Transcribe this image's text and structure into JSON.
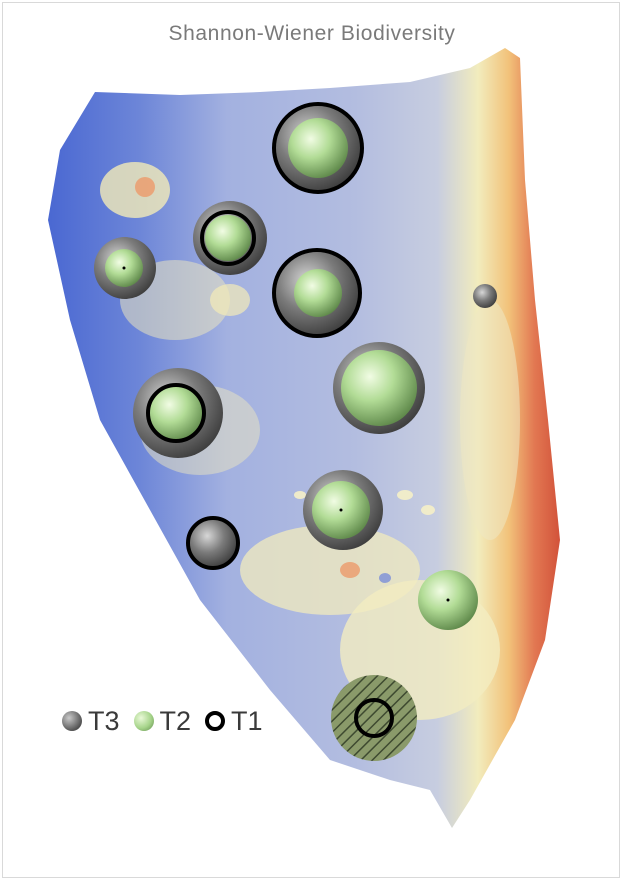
{
  "title": "Shannon-Wiener Biodiversity",
  "legend": [
    {
      "key": "t3",
      "label": "T3"
    },
    {
      "key": "t2",
      "label": "T2"
    },
    {
      "key": "t1",
      "label": "T1"
    }
  ],
  "colors": {
    "deep_water": "#4f6fd6",
    "mid_water": "#a8b6e2",
    "shallow": "#f4ecb2",
    "shore": "#d85a3e",
    "t3_bubble": "#555555",
    "t2_bubble": "#a6d48a",
    "t1_ring": "#000000"
  }
}
